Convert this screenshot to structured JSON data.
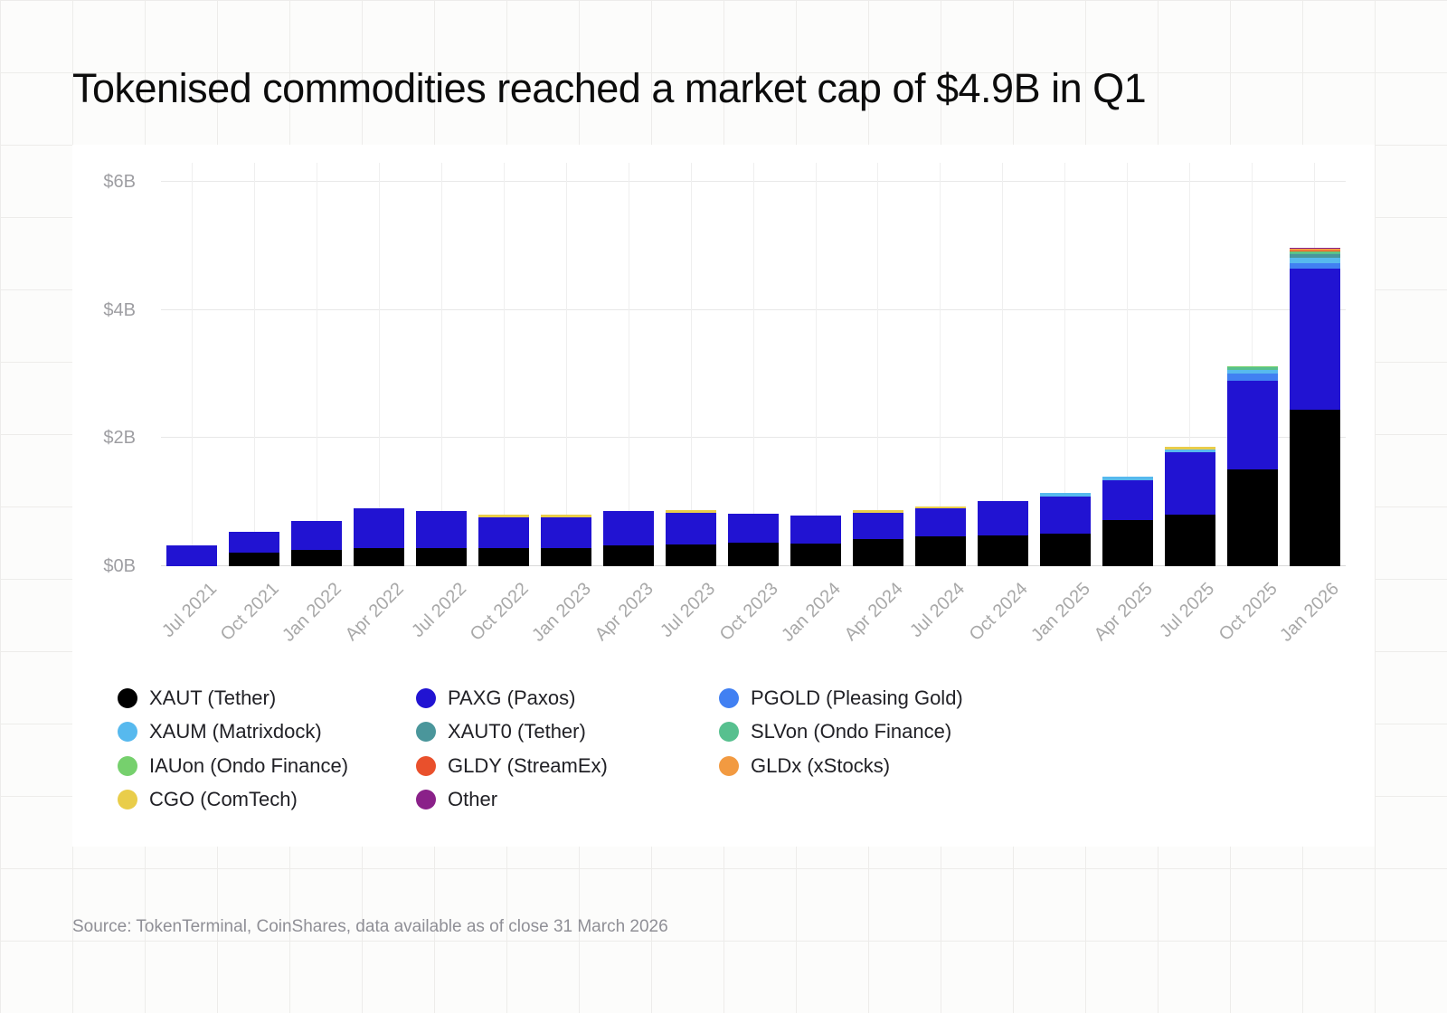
{
  "page": {
    "source": "Source: TokenTerminal, CoinShares, data available as of close 31 March 2026"
  },
  "chart_data": {
    "type": "bar",
    "variant": "stacked",
    "title": "Tokenised commodities reached a market cap of $4.9B in Q1",
    "unit": "$B",
    "ylim": [
      0,
      6.3
    ],
    "grid": true,
    "legend_position": "bottom",
    "yticks": [
      {
        "label": "$0B",
        "value": 0
      },
      {
        "label": "$2B",
        "value": 2
      },
      {
        "label": "$4B",
        "value": 4
      },
      {
        "label": "$6B",
        "value": 6
      }
    ],
    "categories": [
      "Jul 2021",
      "Oct 2021",
      "Jan 2022",
      "Apr 2022",
      "Jul 2022",
      "Oct 2022",
      "Jan 2023",
      "Apr 2023",
      "Jul 2023",
      "Oct 2023",
      "Jan 2024",
      "Apr 2024",
      "Jul 2024",
      "Oct 2024",
      "Jan 2025",
      "Apr 2025",
      "Jul 2025",
      "Oct 2025",
      "Jan 2026"
    ],
    "series": [
      {
        "name": "XAUT (Tether)",
        "color": "#000000",
        "values": [
          0,
          0.21,
          0.25,
          0.29,
          0.29,
          0.29,
          0.29,
          0.33,
          0.34,
          0.37,
          0.36,
          0.43,
          0.46,
          0.48,
          0.51,
          0.72,
          0.81,
          1.51,
          2.45
        ]
      },
      {
        "name": "PAXG (Paxos)",
        "color": "#2113d2",
        "values": [
          0.32,
          0.33,
          0.46,
          0.62,
          0.57,
          0.47,
          0.48,
          0.53,
          0.49,
          0.45,
          0.43,
          0.4,
          0.44,
          0.54,
          0.58,
          0.62,
          0.97,
          1.39,
          2.2
        ]
      },
      {
        "name": "PGOLD (Pleasing Gold)",
        "color": "#4180f2",
        "values": [
          0,
          0,
          0,
          0,
          0,
          0,
          0,
          0,
          0,
          0,
          0,
          0,
          0,
          0,
          0,
          0,
          0,
          0.105,
          0.09
        ]
      },
      {
        "name": "XAUM (Matrixdock)",
        "color": "#57b9ee",
        "values": [
          0,
          0,
          0,
          0,
          0,
          0,
          0,
          0,
          0,
          0,
          0,
          0,
          0,
          0,
          0.05,
          0.06,
          0.04,
          0.056,
          0.08
        ]
      },
      {
        "name": "XAUT0 (Tether)",
        "color": "#4a969b",
        "values": [
          0,
          0,
          0,
          0,
          0,
          0,
          0,
          0,
          0,
          0,
          0,
          0,
          0,
          0,
          0,
          0,
          0,
          0.01,
          0.05
        ]
      },
      {
        "name": "SLVon (Ondo Finance)",
        "color": "#57c08f",
        "values": [
          0,
          0,
          0,
          0,
          0,
          0,
          0,
          0,
          0,
          0,
          0,
          0,
          0,
          0,
          0,
          0,
          0,
          0.04,
          0.035
        ]
      },
      {
        "name": "IAUon (Ondo Finance)",
        "color": "#76d06d",
        "values": [
          0,
          0,
          0,
          0,
          0,
          0,
          0,
          0,
          0,
          0,
          0,
          0,
          0,
          0,
          0,
          0,
          0,
          0.017,
          0.015
        ]
      },
      {
        "name": "GLDY (StreamEx)",
        "color": "#e9502c",
        "values": [
          0,
          0,
          0,
          0,
          0,
          0,
          0,
          0,
          0,
          0,
          0,
          0,
          0,
          0,
          0,
          0,
          0,
          0,
          0.015
        ]
      },
      {
        "name": "GLDx (xStocks)",
        "color": "#f29a41",
        "values": [
          0,
          0,
          0,
          0,
          0,
          0,
          0,
          0,
          0,
          0,
          0,
          0,
          0,
          0,
          0,
          0,
          0,
          0,
          0.02
        ]
      },
      {
        "name": "CGO (ComTech)",
        "color": "#e9cd4a",
        "values": [
          0,
          0,
          0,
          0,
          0,
          0.04,
          0.04,
          0,
          0.04,
          0,
          0,
          0.05,
          0.04,
          0,
          0,
          0,
          0.04,
          0,
          0.005
        ]
      },
      {
        "name": "Other",
        "color": "#8a2189",
        "values": [
          0,
          0,
          0,
          0,
          0,
          0,
          0,
          0,
          0,
          0,
          0,
          0,
          0,
          0,
          0,
          0,
          0,
          0,
          0.01
        ]
      }
    ]
  }
}
